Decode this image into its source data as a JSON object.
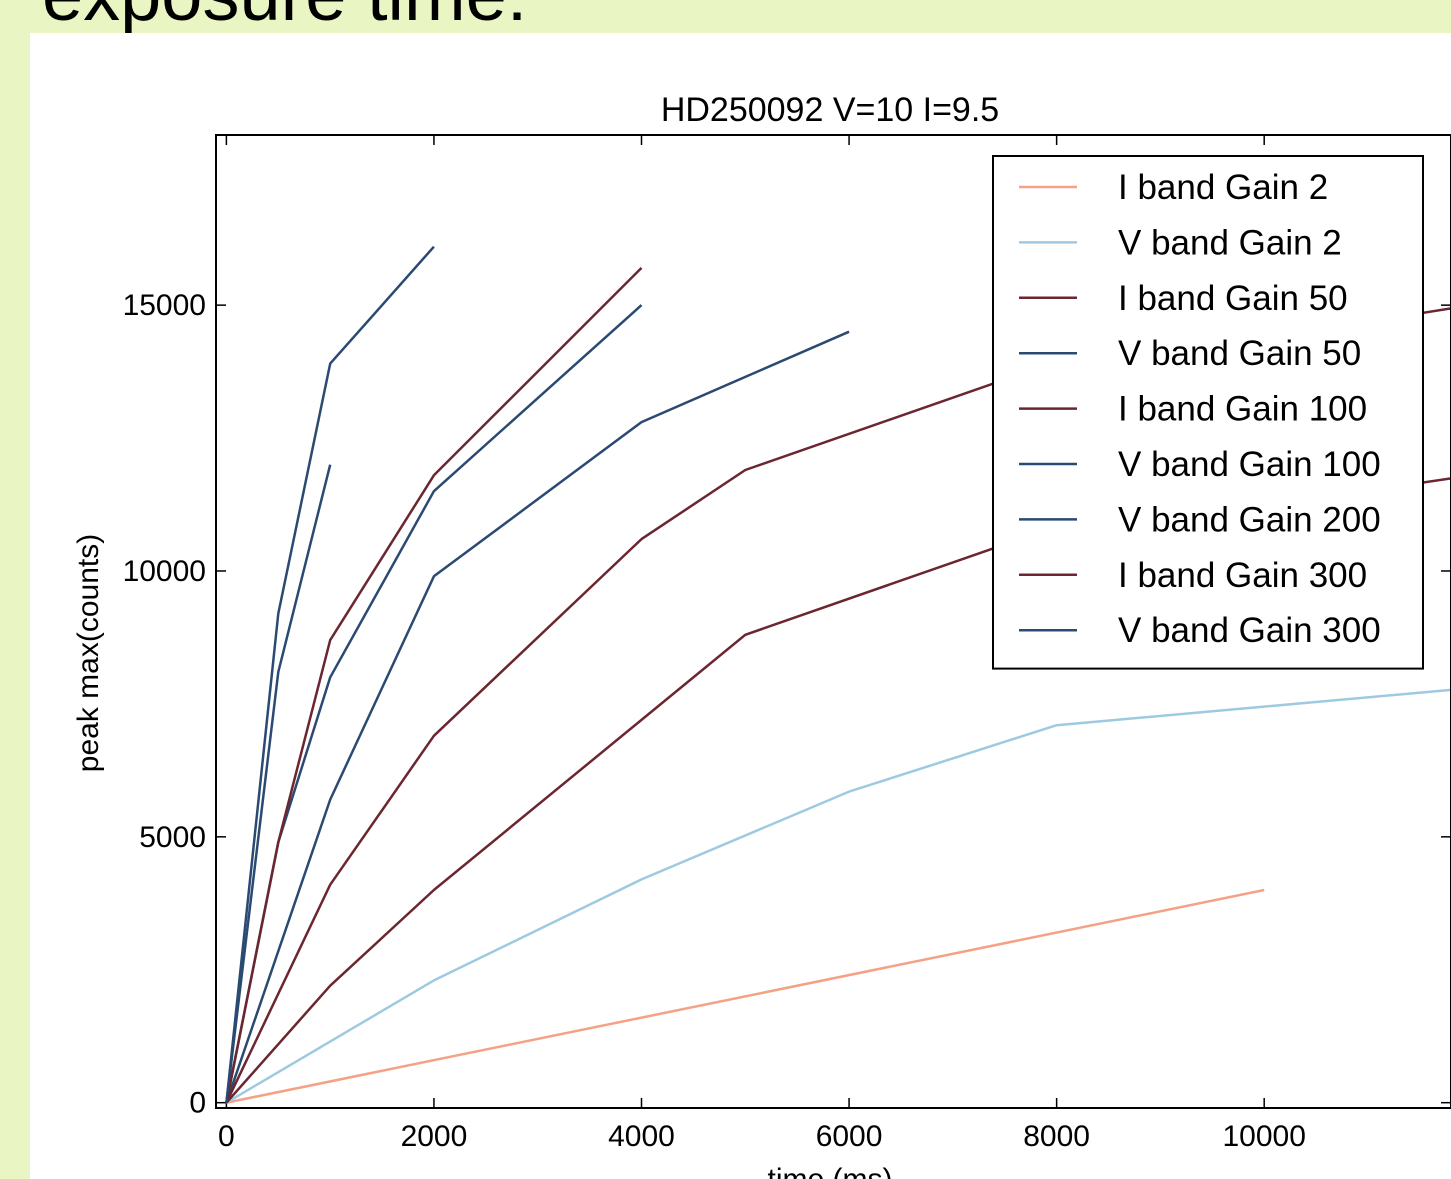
{
  "slide": {
    "heading": "exposure time:"
  },
  "chart_data": {
    "type": "line",
    "title": "HD250092 V=10 I=9.5",
    "xlabel": "time (ms)",
    "ylabel": "peak max(counts)",
    "xlim": [
      -100,
      11800
    ],
    "ylim": [
      -100,
      18200
    ],
    "xticks": [
      0,
      2000,
      4000,
      6000,
      8000,
      10000
    ],
    "yticks": [
      0,
      5000,
      10000,
      15000
    ],
    "grid": false,
    "legend_position": "top-right",
    "series": [
      {
        "name": "I band Gain 2",
        "color": "#f4a185",
        "points": [
          [
            0,
            0
          ],
          [
            10000,
            4000
          ]
        ]
      },
      {
        "name": "V band Gain 2",
        "color": "#9ecae1",
        "points": [
          [
            0,
            0
          ],
          [
            2000,
            2300
          ],
          [
            4000,
            4200
          ],
          [
            6000,
            5850
          ],
          [
            8000,
            7100
          ],
          [
            12000,
            7800
          ]
        ]
      },
      {
        "name": "I band Gain 50",
        "color": "#6b2630",
        "points": [
          [
            0,
            0
          ],
          [
            1000,
            2200
          ],
          [
            2000,
            4000
          ],
          [
            4000,
            7200
          ],
          [
            5000,
            8800
          ],
          [
            7500,
            10500
          ],
          [
            12000,
            11800
          ]
        ]
      },
      {
        "name": "V band Gain 50",
        "color": "#2b4a72",
        "points": [
          [
            0,
            0
          ],
          [
            1000,
            5700
          ],
          [
            2000,
            9900
          ],
          [
            4000,
            12800
          ],
          [
            6000,
            14500
          ]
        ]
      },
      {
        "name": "I band Gain 100",
        "color": "#6b2630",
        "points": [
          [
            0,
            0
          ],
          [
            1000,
            4100
          ],
          [
            2000,
            6900
          ],
          [
            4000,
            10600
          ],
          [
            5000,
            11900
          ],
          [
            7500,
            13600
          ],
          [
            12000,
            15000
          ]
        ]
      },
      {
        "name": "V band Gain 100",
        "color": "#2b4a72",
        "points": [
          [
            0,
            0
          ],
          [
            500,
            4900
          ],
          [
            1000,
            8000
          ],
          [
            2000,
            11500
          ],
          [
            4000,
            15000
          ]
        ]
      },
      {
        "name": "V band Gain 200",
        "color": "#2b4a72",
        "points": [
          [
            0,
            0
          ],
          [
            500,
            8100
          ],
          [
            1000,
            12000
          ]
        ]
      },
      {
        "name": "I band Gain 300",
        "color": "#6b2630",
        "points": [
          [
            0,
            0
          ],
          [
            500,
            4900
          ],
          [
            1000,
            8700
          ],
          [
            2000,
            11800
          ],
          [
            4000,
            15700
          ]
        ]
      },
      {
        "name": "V band Gain 300",
        "color": "#2b4a72",
        "points": [
          [
            0,
            0
          ],
          [
            500,
            9200
          ],
          [
            1000,
            13900
          ],
          [
            2000,
            16100
          ]
        ]
      }
    ]
  }
}
